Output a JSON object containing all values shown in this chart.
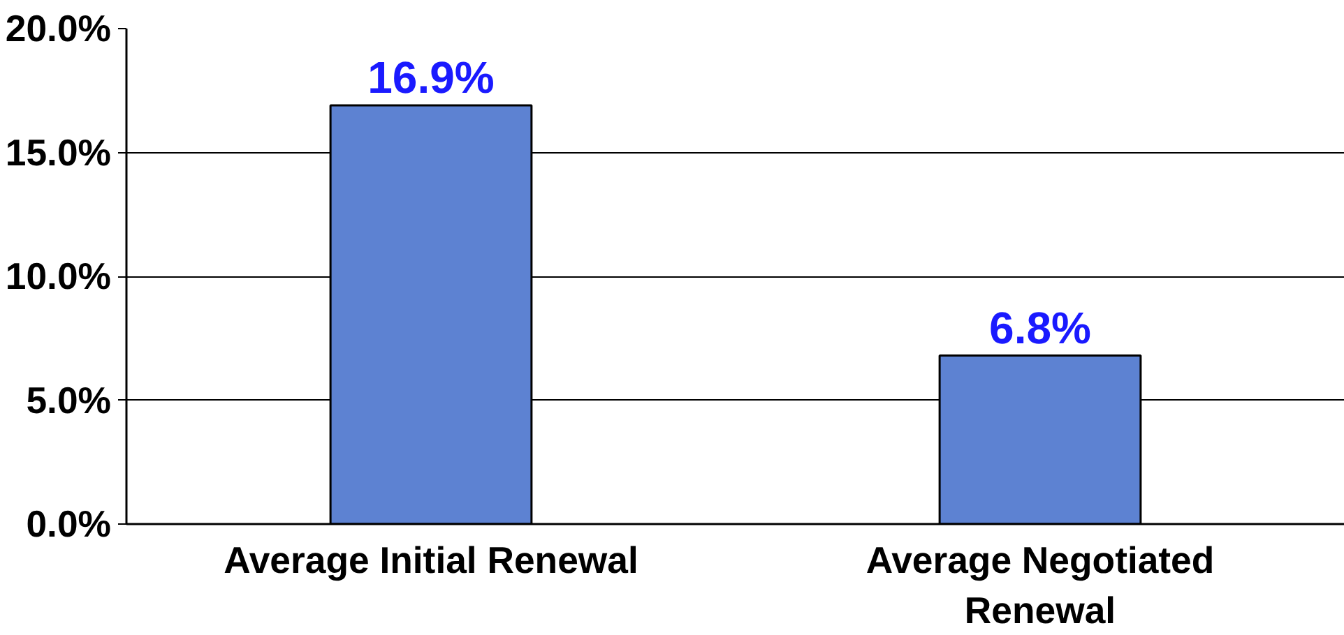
{
  "chart_data": {
    "type": "bar",
    "categories": [
      "Average Initial Renewal",
      "Average Negotiated Renewal"
    ],
    "values": [
      16.9,
      6.8
    ],
    "color": "#5d82d2",
    "value_labels": [
      "16.9%",
      "6.8%"
    ],
    "ylim": [
      0,
      20
    ],
    "yticks": [
      {
        "value": 0,
        "label": "0.0%"
      },
      {
        "value": 5,
        "label": "5.0%"
      },
      {
        "value": 10,
        "label": "10.0%"
      },
      {
        "value": 15,
        "label": "15.0%"
      },
      {
        "value": 20,
        "label": "20.0%"
      }
    ],
    "grid": "y"
  }
}
